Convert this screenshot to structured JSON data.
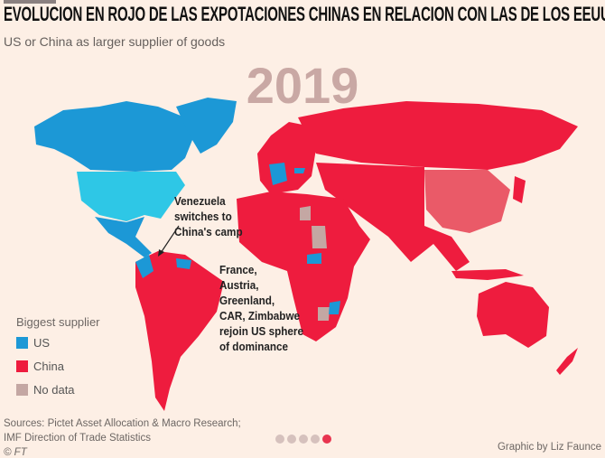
{
  "header": {
    "title": "EVOLUCION EN ROJO DE LAS EXPOTACIONES CHINAS EN RELACION CON LAS DE LOS EEUU",
    "subtitle": "US or China as larger supplier of goods",
    "year": "2019"
  },
  "annotations": {
    "venezuela": [
      "Venezuela",
      "switches to",
      "China's camp"
    ],
    "france": [
      "France,",
      "Austria,",
      "Greenland,",
      "CAR, Zimbabwe",
      "rejoin US sphere",
      "of dominance"
    ]
  },
  "legend": {
    "title": "Biggest supplier",
    "items": [
      {
        "label": "US",
        "color": "#1c98d6"
      },
      {
        "label": "China",
        "color": "#ee1c3e"
      },
      {
        "label": "No data",
        "color": "#c4a7a3"
      }
    ]
  },
  "colors": {
    "us": "#1c98d6",
    "usa": "#2ec7e6",
    "china": "#ee1c3e",
    "china_country": "#ea5a68",
    "nodata": "#c4a7a3"
  },
  "footer": {
    "sources": [
      "Sources: Pictet Asset Allocation & Macro Research;",
      "IMF Direction of Trade Statistics"
    ],
    "copyright": "© FT",
    "credit": "Graphic by Liz Faunce"
  },
  "pager": {
    "count": 5,
    "active": 5
  }
}
